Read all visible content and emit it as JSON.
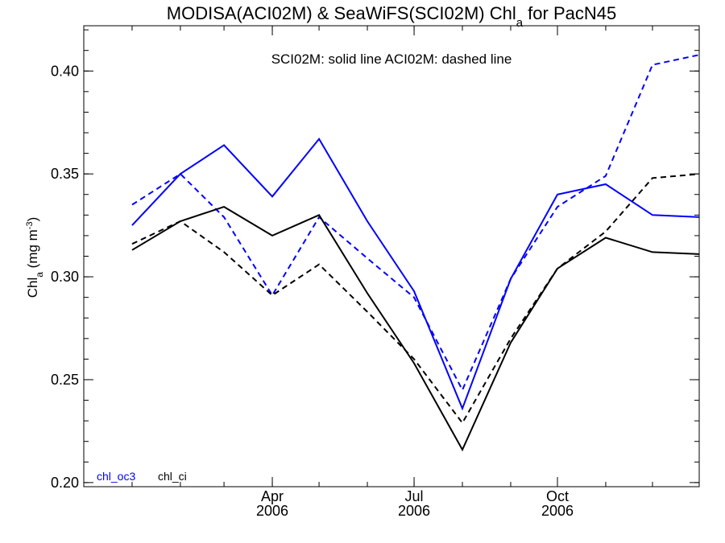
{
  "chart_data": {
    "type": "line",
    "title_main": "MODISA(ACI02M) & SeaWiFS(SCI02M)  Chl",
    "title_sub": "a",
    "title_tail": " for PacN45",
    "annotation": "SCI02M: solid line   ACI02M: dashed line",
    "ylabel_main": "Chl",
    "ylabel_sub": "a",
    "ylabel_unit": " (mg m",
    "ylabel_sup": "-3",
    "ylabel_close": ")",
    "ylim": [
      0.198,
      0.422
    ],
    "yticks": [
      "0.20",
      "0.25",
      "0.30",
      "0.35",
      "0.40"
    ],
    "xlim": [
      "2005-12-01",
      "2006-12-31"
    ],
    "xticks": [
      {
        "date": "2006-04-01",
        "month": "Apr",
        "year": "2006"
      },
      {
        "date": "2006-07-01",
        "month": "Jul",
        "year": "2006"
      },
      {
        "date": "2006-10-01",
        "month": "Oct",
        "year": "2006"
      }
    ],
    "x": [
      "2006-01-01",
      "2006-02-01",
      "2006-03-01",
      "2006-04-01",
      "2006-05-01",
      "2006-06-01",
      "2006-07-01",
      "2006-08-01",
      "2006-09-01",
      "2006-10-01",
      "2006-11-01",
      "2006-12-01",
      "2007-01-01"
    ],
    "series": [
      {
        "name": "chl_oc3",
        "dataset": "SCI02M",
        "color": "#0000ff",
        "dash": false,
        "values": [
          0.325,
          0.35,
          0.364,
          0.339,
          0.367,
          0.327,
          0.293,
          0.236,
          0.299,
          0.34,
          0.345,
          0.33,
          0.329
        ]
      },
      {
        "name": "chl_oc3",
        "dataset": "ACI02M",
        "color": "#0000ff",
        "dash": true,
        "values": [
          0.335,
          0.35,
          0.329,
          0.291,
          0.329,
          0.309,
          0.29,
          0.245,
          0.299,
          0.334,
          0.349,
          0.403,
          0.408
        ]
      },
      {
        "name": "chl_ci",
        "dataset": "SCI02M",
        "color": "#000000",
        "dash": false,
        "values": [
          0.313,
          0.327,
          0.334,
          0.32,
          0.33,
          0.292,
          0.258,
          0.216,
          0.268,
          0.304,
          0.319,
          0.312,
          0.311
        ]
      },
      {
        "name": "chl_ci",
        "dataset": "ACI02M",
        "color": "#000000",
        "dash": true,
        "values": [
          0.316,
          0.327,
          0.312,
          0.291,
          0.306,
          0.283,
          0.26,
          0.229,
          0.27,
          0.304,
          0.322,
          0.348,
          0.35
        ]
      }
    ],
    "legend": [
      {
        "label": "chl_oc3",
        "color": "#0000ff"
      },
      {
        "label": "chl_ci",
        "color": "#000000"
      }
    ],
    "legend_position": "bottom-left",
    "grid": false
  }
}
